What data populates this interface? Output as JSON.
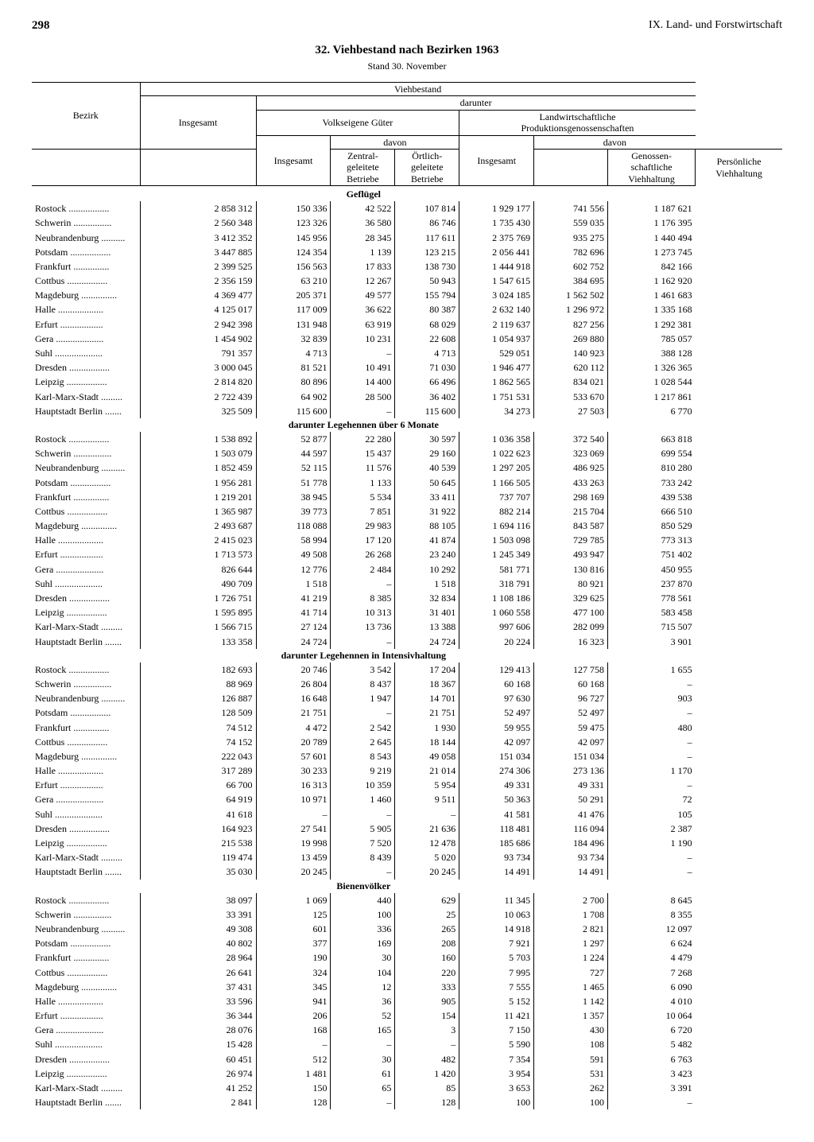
{
  "page_number": "298",
  "chapter": "IX. Land- und Forstwirtschaft",
  "title": "32. Viehbestand nach Bezirken 1963",
  "subtitle": "Stand 30. November",
  "columns": {
    "bezirk": "Bezirk",
    "viehbestand": "Viehbestand",
    "insgesamt": "Insgesamt",
    "darunter": "darunter",
    "volkseigene": "Volkseigene Güter",
    "davon": "davon",
    "zentral": "Zentral-\ngeleitete\nBetriebe",
    "oertlich": "Örtlich-\ngeleitete\nBetriebe",
    "lpg": "Landwirtschaftliche\nProduktionsgenossenschaften",
    "genoss": "Genossen-\nschaftliche\nViehhaltung",
    "pers": "Persönliche\nViehhaltung"
  },
  "sections": [
    {
      "title": "Geflügel",
      "rows": [
        [
          "Rostock",
          "2 858 312",
          "150 336",
          "42 522",
          "107 814",
          "1 929 177",
          "741 556",
          "1 187 621"
        ],
        [
          "Schwerin",
          "2 560 348",
          "123 326",
          "36 580",
          "86 746",
          "1 735 430",
          "559 035",
          "1 176 395"
        ],
        [
          "Neubrandenburg",
          "3 412 352",
          "145 956",
          "28 345",
          "117 611",
          "2 375 769",
          "935 275",
          "1 440 494"
        ],
        [
          "Potsdam",
          "3 447 885",
          "124 354",
          "1 139",
          "123 215",
          "2 056 441",
          "782 696",
          "1 273 745"
        ],
        [
          "Frankfurt",
          "2 399 525",
          "156 563",
          "17 833",
          "138 730",
          "1 444 918",
          "602 752",
          "842 166"
        ],
        [
          "Cottbus",
          "2 356 159",
          "63 210",
          "12 267",
          "50 943",
          "1 547 615",
          "384 695",
          "1 162 920"
        ],
        [
          "Magdeburg",
          "4 369 477",
          "205 371",
          "49 577",
          "155 794",
          "3 024 185",
          "1 562 502",
          "1 461 683"
        ],
        [
          "Halle",
          "4 125 017",
          "117 009",
          "36 622",
          "80 387",
          "2 632 140",
          "1 296 972",
          "1 335 168"
        ],
        [
          "Erfurt",
          "2 942 398",
          "131 948",
          "63 919",
          "68 029",
          "2 119 637",
          "827 256",
          "1 292 381"
        ],
        [
          "Gera",
          "1 454 902",
          "32 839",
          "10 231",
          "22 608",
          "1 054 937",
          "269 880",
          "785 057"
        ],
        [
          "Suhl",
          "791 357",
          "4 713",
          "–",
          "4 713",
          "529 051",
          "140 923",
          "388 128"
        ],
        [
          "Dresden",
          "3 000 045",
          "81 521",
          "10 491",
          "71 030",
          "1 946 477",
          "620 112",
          "1 326 365"
        ],
        [
          "Leipzig",
          "2 814 820",
          "80 896",
          "14 400",
          "66 496",
          "1 862 565",
          "834 021",
          "1 028 544"
        ],
        [
          "Karl-Marx-Stadt",
          "2 722 439",
          "64 902",
          "28 500",
          "36 402",
          "1 751 531",
          "533 670",
          "1 217 861"
        ],
        [
          "Hauptstadt Berlin",
          "325 509",
          "115 600",
          "–",
          "115 600",
          "34 273",
          "27 503",
          "6 770"
        ]
      ]
    },
    {
      "title": "darunter Legehennen über 6 Monate",
      "rows": [
        [
          "Rostock",
          "1 538 892",
          "52 877",
          "22 280",
          "30 597",
          "1 036 358",
          "372 540",
          "663 818"
        ],
        [
          "Schwerin",
          "1 503 079",
          "44 597",
          "15 437",
          "29 160",
          "1 022 623",
          "323 069",
          "699 554"
        ],
        [
          "Neubrandenburg",
          "1 852 459",
          "52 115",
          "11 576",
          "40 539",
          "1 297 205",
          "486 925",
          "810 280"
        ],
        [
          "Potsdam",
          "1 956 281",
          "51 778",
          "1 133",
          "50 645",
          "1 166 505",
          "433 263",
          "733 242"
        ],
        [
          "Frankfurt",
          "1 219 201",
          "38 945",
          "5 534",
          "33 411",
          "737 707",
          "298 169",
          "439 538"
        ],
        [
          "Cottbus",
          "1 365 987",
          "39 773",
          "7 851",
          "31 922",
          "882 214",
          "215 704",
          "666 510"
        ],
        [
          "Magdeburg",
          "2 493 687",
          "118 088",
          "29 983",
          "88 105",
          "1 694 116",
          "843 587",
          "850 529"
        ],
        [
          "Halle",
          "2 415 023",
          "58 994",
          "17 120",
          "41 874",
          "1 503 098",
          "729 785",
          "773 313"
        ],
        [
          "Erfurt",
          "1 713 573",
          "49 508",
          "26 268",
          "23 240",
          "1 245 349",
          "493 947",
          "751 402"
        ],
        [
          "Gera",
          "826 644",
          "12 776",
          "2 484",
          "10 292",
          "581 771",
          "130 816",
          "450 955"
        ],
        [
          "Suhl",
          "490 709",
          "1 518",
          "–",
          "1 518",
          "318 791",
          "80 921",
          "237 870"
        ],
        [
          "Dresden",
          "1 726 751",
          "41 219",
          "8 385",
          "32 834",
          "1 108 186",
          "329 625",
          "778 561"
        ],
        [
          "Leipzig",
          "1 595 895",
          "41 714",
          "10 313",
          "31 401",
          "1 060 558",
          "477 100",
          "583 458"
        ],
        [
          "Karl-Marx-Stadt",
          "1 566 715",
          "27 124",
          "13 736",
          "13 388",
          "997 606",
          "282 099",
          "715 507"
        ],
        [
          "Hauptstadt Berlin",
          "133 358",
          "24 724",
          "–",
          "24 724",
          "20 224",
          "16 323",
          "3 901"
        ]
      ]
    },
    {
      "title": "darunter Legehennen in Intensivhaltung",
      "rows": [
        [
          "Rostock",
          "182 693",
          "20 746",
          "3 542",
          "17 204",
          "129 413",
          "127 758",
          "1 655"
        ],
        [
          "Schwerin",
          "88 969",
          "26 804",
          "8 437",
          "18 367",
          "60 168",
          "60 168",
          "–"
        ],
        [
          "Neubrandenburg",
          "126 887",
          "16 648",
          "1 947",
          "14 701",
          "97 630",
          "96 727",
          "903"
        ],
        [
          "Potsdam",
          "128 509",
          "21 751",
          "–",
          "21 751",
          "52 497",
          "52 497",
          "–"
        ],
        [
          "Frankfurt",
          "74 512",
          "4 472",
          "2 542",
          "1 930",
          "59 955",
          "59 475",
          "480"
        ],
        [
          "Cottbus",
          "74 152",
          "20 789",
          "2 645",
          "18 144",
          "42 097",
          "42 097",
          "–"
        ],
        [
          "Magdeburg",
          "222 043",
          "57 601",
          "8 543",
          "49 058",
          "151 034",
          "151 034",
          "–"
        ],
        [
          "Halle",
          "317 289",
          "30 233",
          "9 219",
          "21 014",
          "274 306",
          "273 136",
          "1 170"
        ],
        [
          "Erfurt",
          "66 700",
          "16 313",
          "10 359",
          "5 954",
          "49 331",
          "49 331",
          "–"
        ],
        [
          "Gera",
          "64 919",
          "10 971",
          "1 460",
          "9 511",
          "50 363",
          "50 291",
          "72"
        ],
        [
          "Suhl",
          "41 618",
          "–",
          "–",
          "–",
          "41 581",
          "41 476",
          "105"
        ],
        [
          "Dresden",
          "164 923",
          "27 541",
          "5 905",
          "21 636",
          "118 481",
          "116 094",
          "2 387"
        ],
        [
          "Leipzig",
          "215 538",
          "19 998",
          "7 520",
          "12 478",
          "185 686",
          "184 496",
          "1 190"
        ],
        [
          "Karl-Marx-Stadt",
          "119 474",
          "13 459",
          "8 439",
          "5 020",
          "93 734",
          "93 734",
          "–"
        ],
        [
          "Hauptstadt Berlin",
          "35 030",
          "20 245",
          "–",
          "20 245",
          "14 491",
          "14 491",
          "–"
        ]
      ]
    },
    {
      "title": "Bienenvölker",
      "rows": [
        [
          "Rostock",
          "38 097",
          "1 069",
          "440",
          "629",
          "11 345",
          "2 700",
          "8 645"
        ],
        [
          "Schwerin",
          "33 391",
          "125",
          "100",
          "25",
          "10 063",
          "1 708",
          "8 355"
        ],
        [
          "Neubrandenburg",
          "49 308",
          "601",
          "336",
          "265",
          "14 918",
          "2 821",
          "12 097"
        ],
        [
          "Potsdam",
          "40 802",
          "377",
          "169",
          "208",
          "7 921",
          "1 297",
          "6 624"
        ],
        [
          "Frankfurt",
          "28 964",
          "190",
          "30",
          "160",
          "5 703",
          "1 224",
          "4 479"
        ],
        [
          "Cottbus",
          "26 641",
          "324",
          "104",
          "220",
          "7 995",
          "727",
          "7 268"
        ],
        [
          "Magdeburg",
          "37 431",
          "345",
          "12",
          "333",
          "7 555",
          "1 465",
          "6 090"
        ],
        [
          "Halle",
          "33 596",
          "941",
          "36",
          "905",
          "5 152",
          "1 142",
          "4 010"
        ],
        [
          "Erfurt",
          "36 344",
          "206",
          "52",
          "154",
          "11 421",
          "1 357",
          "10 064"
        ],
        [
          "Gera",
          "28 076",
          "168",
          "165",
          "3",
          "7 150",
          "430",
          "6 720"
        ],
        [
          "Suhl",
          "15 428",
          "–",
          "–",
          "–",
          "5 590",
          "108",
          "5 482"
        ],
        [
          "Dresden",
          "60 451",
          "512",
          "30",
          "482",
          "7 354",
          "591",
          "6 763"
        ],
        [
          "Leipzig",
          "26 974",
          "1 481",
          "61",
          "1 420",
          "3 954",
          "531",
          "3 423"
        ],
        [
          "Karl-Marx-Stadt",
          "41 252",
          "150",
          "65",
          "85",
          "3 653",
          "262",
          "3 391"
        ],
        [
          "Hauptstadt Berlin",
          "2 841",
          "128",
          "–",
          "128",
          "100",
          "100",
          "–"
        ]
      ]
    }
  ]
}
